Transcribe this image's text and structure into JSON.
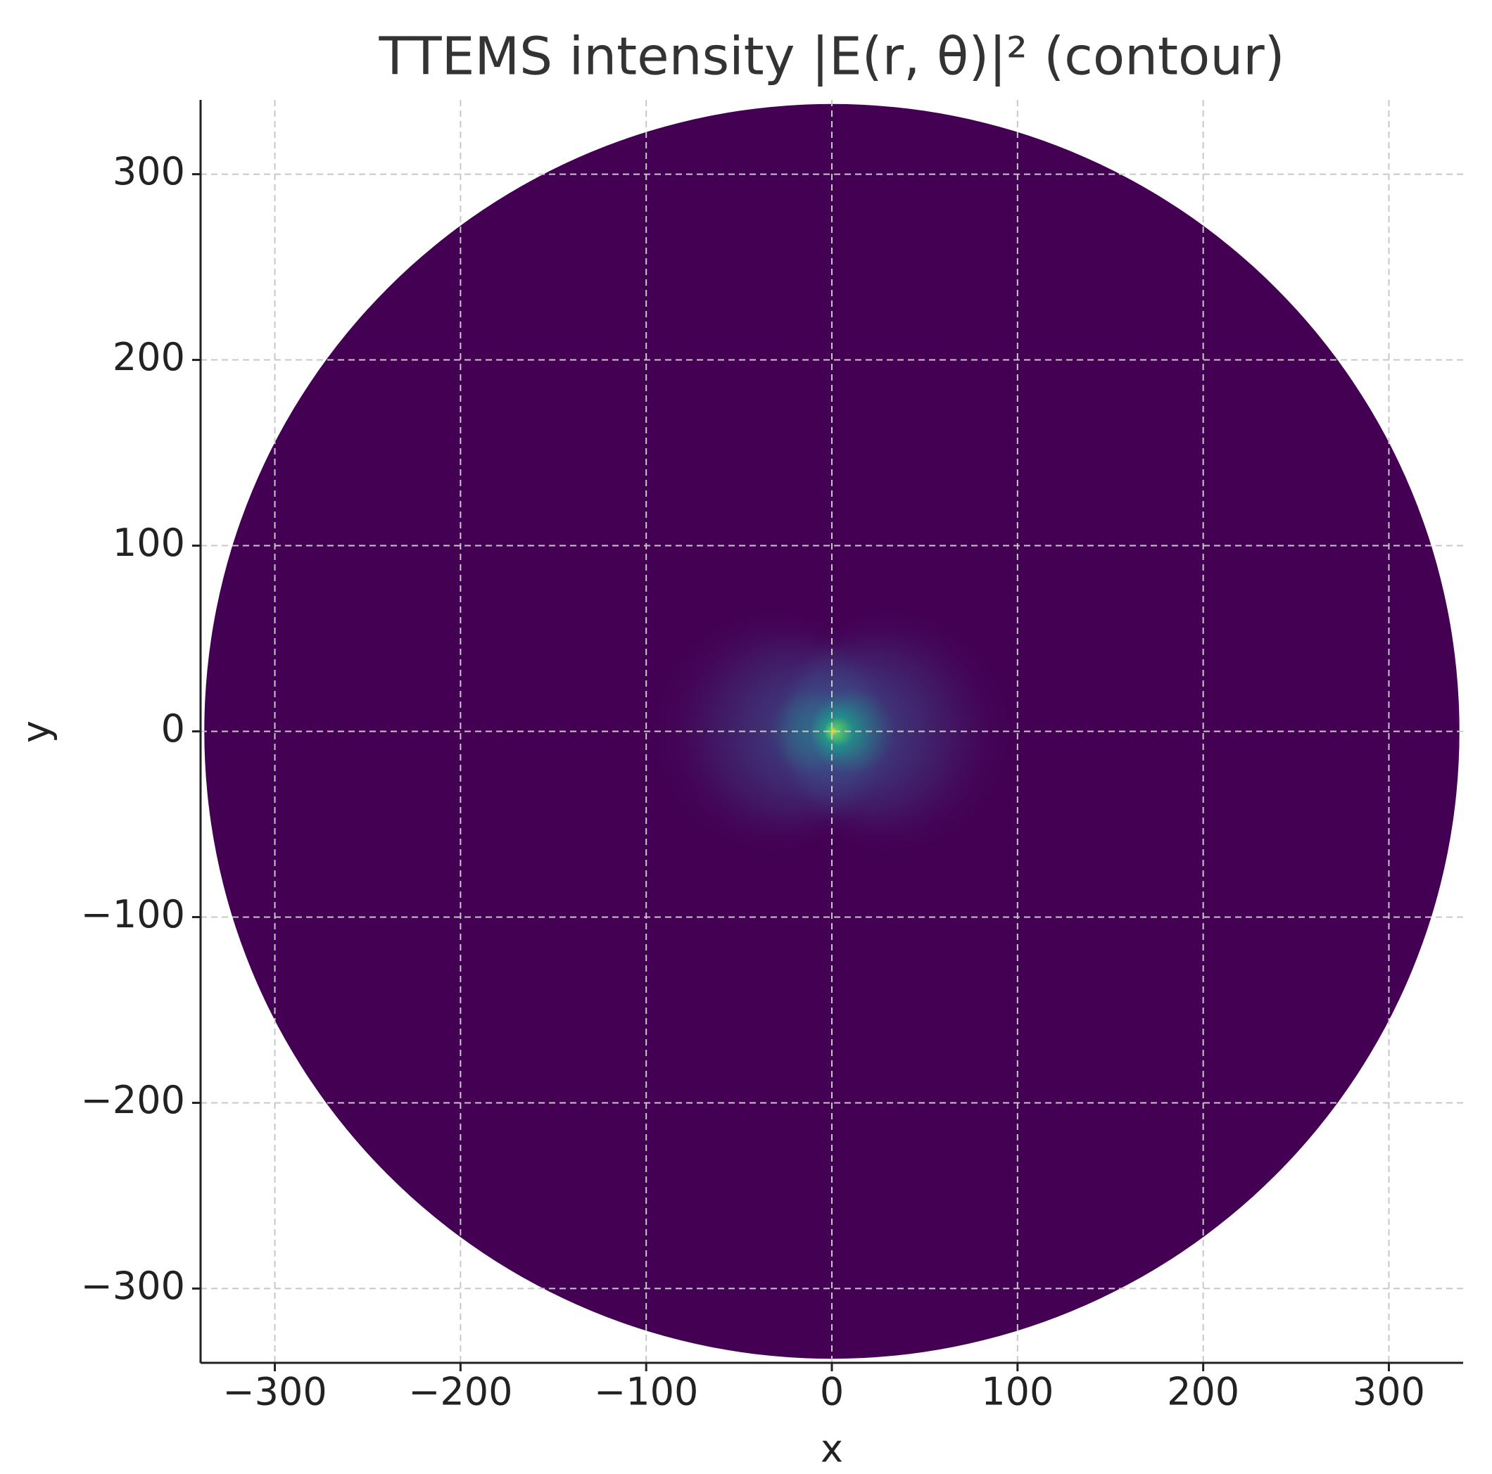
{
  "chart_data": {
    "type": "contour",
    "title": "TTEMS intensity |E(r, θ)|² (contour)",
    "x_label": "x",
    "y_label": "y",
    "xlim": [
      -340,
      340
    ],
    "ylim": [
      -340,
      340
    ],
    "xticks": [
      {
        "value": -300,
        "label": "−300"
      },
      {
        "value": -200,
        "label": "−200"
      },
      {
        "value": -100,
        "label": "−100"
      },
      0,
      100,
      200,
      300
    ],
    "yticks": [
      {
        "value": -300,
        "label": "−300"
      },
      {
        "value": -200,
        "label": "−200"
      },
      {
        "value": -100,
        "label": "−100"
      },
      0,
      100,
      200,
      300
    ],
    "grid": true,
    "domain_radius": 338,
    "colormap": [
      "#440154",
      "#3b528b",
      "#21918c",
      "#5ec962",
      "#fde725"
    ],
    "lobes": [
      {
        "x": -32,
        "y": 0,
        "r": 35
      },
      {
        "x": 32,
        "y": 0,
        "r": 35
      }
    ]
  }
}
